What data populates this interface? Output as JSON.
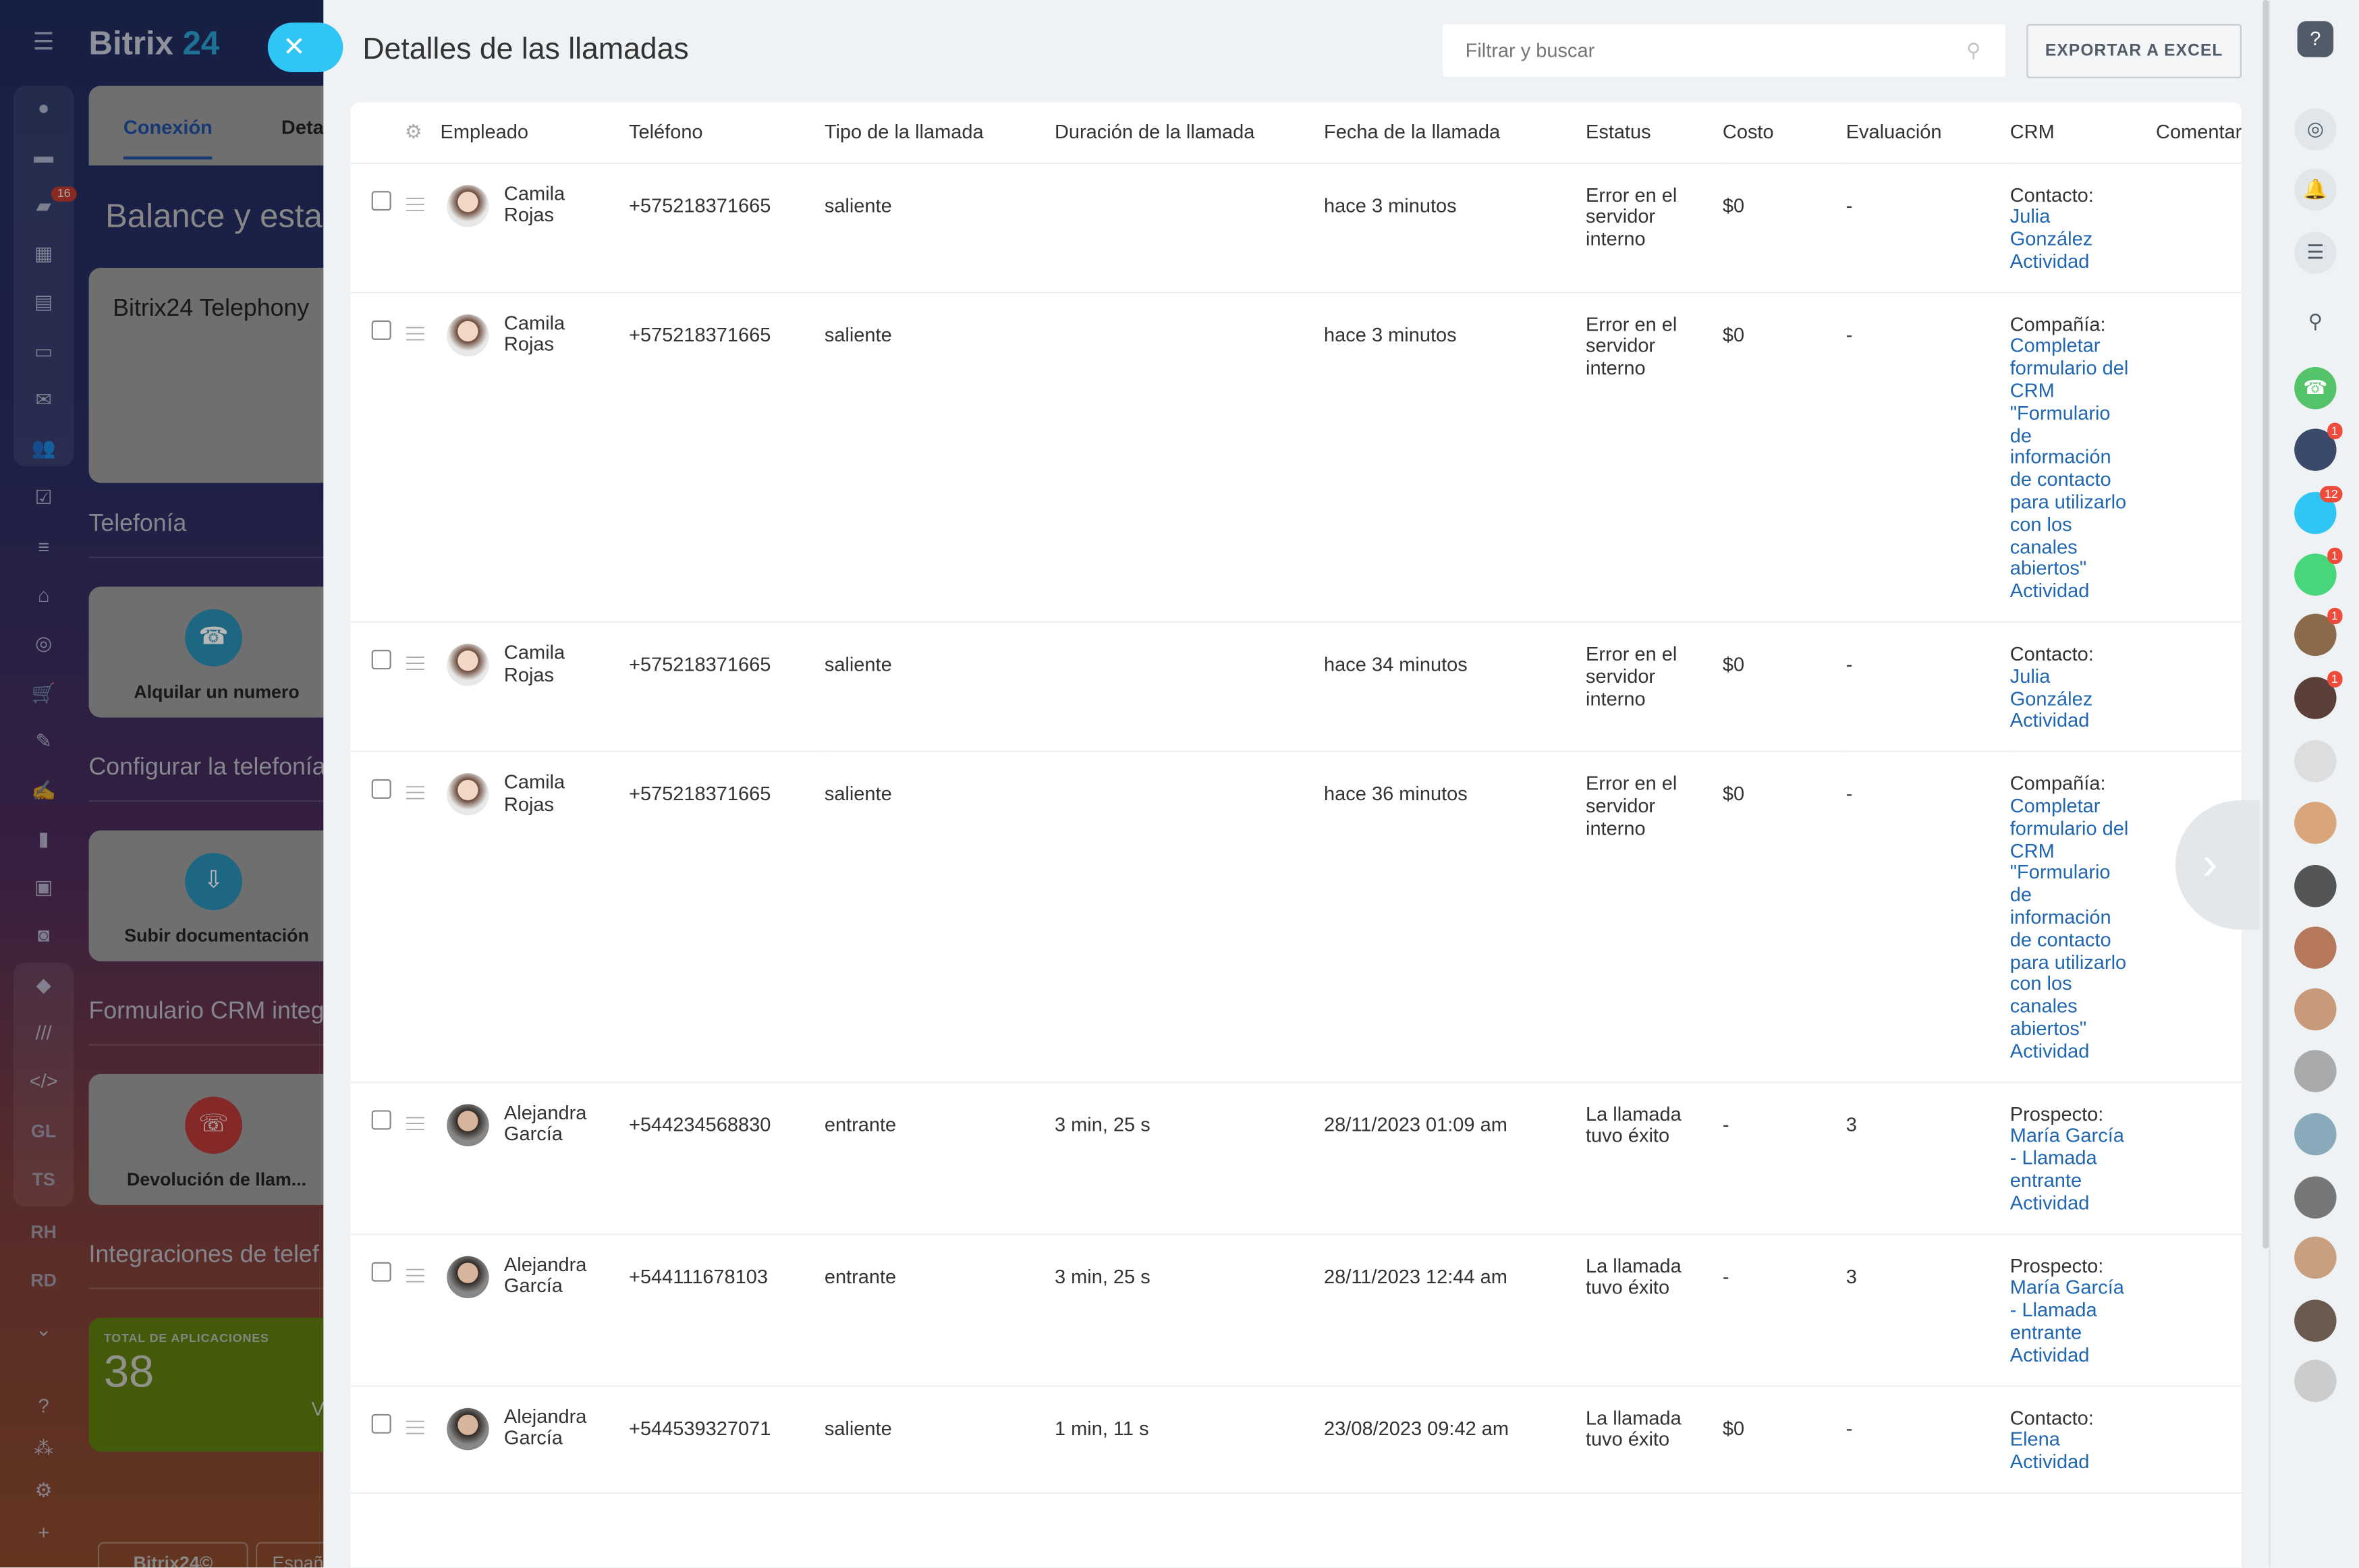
{
  "background": {
    "logo_text": "Bitrix",
    "logo_num": "24",
    "tabs": [
      "Conexión",
      "Deta"
    ],
    "balance_title": "Balance y esta",
    "telephony_card": "Bitrix24 Telephony",
    "sections": [
      "Telefonía",
      "Configurar la telefonía",
      "Formulario CRM integ",
      "Integraciones de telef"
    ],
    "cards": [
      "Alquilar un numero",
      "Subir documentación",
      "Devolución de llam..."
    ],
    "apps_label": "TOTAL DE APLICACIONES",
    "apps_count": "38",
    "apps_more": "V",
    "footer": [
      "Bitrix24©",
      "Españ"
    ],
    "nav_badge": "16",
    "nav_text": [
      "GL",
      "TS",
      "RH",
      "RD"
    ]
  },
  "panel": {
    "title": "Detalles de las llamadas",
    "search_placeholder": "Filtrar y buscar",
    "export_label": "EXPORTAR A EXCEL",
    "columns": [
      "Empleado",
      "Teléfono",
      "Tipo de la llamada",
      "Duración de la llamada",
      "Fecha de la llamada",
      "Estatus",
      "Costo",
      "Evaluación",
      "CRM",
      "Comentar"
    ],
    "rows": [
      {
        "employee": "Camila Rojas",
        "phone": "+575218371665",
        "type": "saliente",
        "duration": "",
        "date": "hace 3 minutos",
        "status": "Error en el servidor interno",
        "cost": "$0",
        "rating": "-",
        "crm_label": "Contacto:",
        "crm_link": "Julia González",
        "crm_activity": "Actividad"
      },
      {
        "employee": "Camila Rojas",
        "phone": "+575218371665",
        "type": "saliente",
        "duration": "",
        "date": "hace 3 minutos",
        "status": "Error en el servidor interno",
        "cost": "$0",
        "rating": "-",
        "crm_label": "Compañía:",
        "crm_link": "Completar formulario del CRM \"Formulario de información de contacto para utilizarlo con los canales abiertos\"",
        "crm_activity": "Actividad"
      },
      {
        "employee": "Camila Rojas",
        "phone": "+575218371665",
        "type": "saliente",
        "duration": "",
        "date": "hace 34 minutos",
        "status": "Error en el servidor interno",
        "cost": "$0",
        "rating": "-",
        "crm_label": "Contacto:",
        "crm_link": "Julia González",
        "crm_activity": "Actividad"
      },
      {
        "employee": "Camila Rojas",
        "phone": "+575218371665",
        "type": "saliente",
        "duration": "",
        "date": "hace 36 minutos",
        "status": "Error en el servidor interno",
        "cost": "$0",
        "rating": "-",
        "crm_label": "Compañía:",
        "crm_link": "Completar formulario del CRM \"Formulario de información de contacto para utilizarlo con los canales abiertos\"",
        "crm_activity": "Actividad"
      },
      {
        "employee": "Alejandra García",
        "phone": "+544234568830",
        "type": "entrante",
        "duration": "3 min, 25 s",
        "date": "28/11/2023 01:09 am",
        "status": "La llamada tuvo éxito",
        "cost": "-",
        "rating": "3",
        "crm_label": "Prospecto:",
        "crm_link": "María García - Llamada entrante",
        "crm_activity": "Actividad"
      },
      {
        "employee": "Alejandra García",
        "phone": "+544111678103",
        "type": "entrante",
        "duration": "3 min, 25 s",
        "date": "28/11/2023 12:44 am",
        "status": "La llamada tuvo éxito",
        "cost": "-",
        "rating": "3",
        "crm_label": "Prospecto:",
        "crm_link": "María García - Llamada entrante",
        "crm_activity": "Actividad"
      },
      {
        "employee": "Alejandra García",
        "phone": "+544539327071",
        "type": "saliente",
        "duration": "1 min, 11 s",
        "date": "23/08/2023 09:42 am",
        "status": "La llamada tuvo éxito",
        "cost": "$0",
        "rating": "-",
        "crm_label": "Contacto:",
        "crm_link": "Elena",
        "crm_activity": "Actividad"
      }
    ]
  },
  "right_bar": {
    "badges": [
      "1",
      "12",
      "1",
      "1",
      "1"
    ]
  },
  "colors": {
    "accent": "#2fc6f6",
    "link": "#2066b0",
    "apps_card": "#5e7d0f"
  }
}
